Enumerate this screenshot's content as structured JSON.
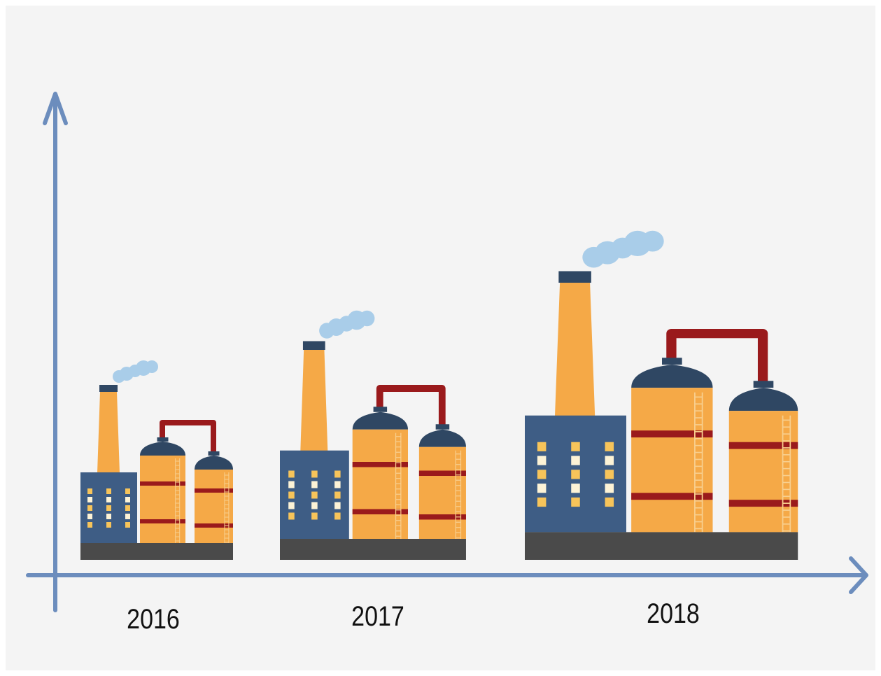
{
  "labels": [
    "2016",
    "2017",
    "2018"
  ]
}
